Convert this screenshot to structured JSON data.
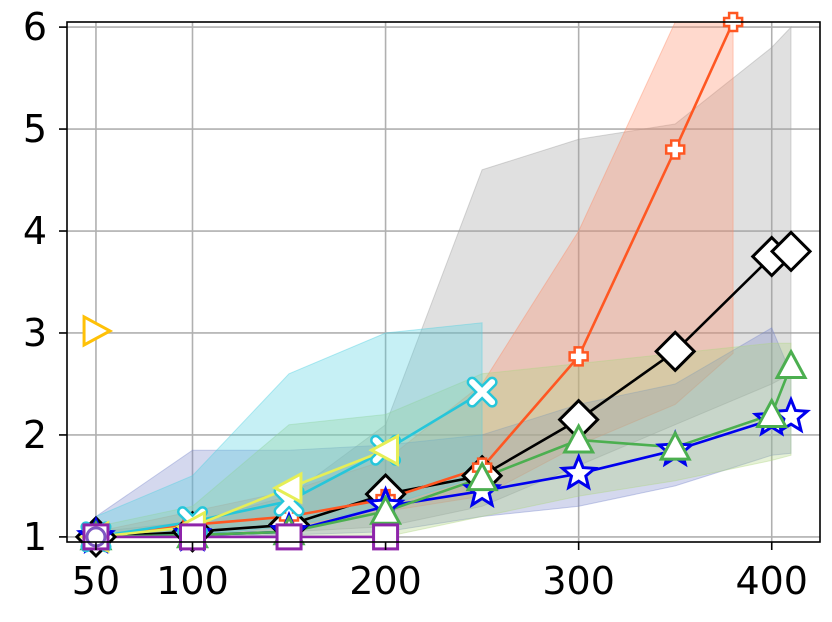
{
  "chart_data": {
    "type": "line",
    "title": "",
    "xlabel": "",
    "ylabel": "",
    "xlim": [
      35,
      425
    ],
    "ylim": [
      0.95,
      6.05
    ],
    "xticks": [
      50,
      100,
      200,
      300,
      400
    ],
    "xtick_labels": [
      "50",
      "100",
      "200",
      "300",
      "400"
    ],
    "yticks": [
      1,
      2,
      3,
      4,
      5,
      6
    ],
    "ytick_labels": [
      "1",
      "2",
      "3",
      "4",
      "5",
      "6"
    ],
    "grid": true,
    "series": [
      {
        "color": "#000000",
        "marker": "diamond",
        "filled": false,
        "points": [
          [
            50,
            1.0
          ],
          [
            100,
            1.05
          ],
          [
            150,
            1.12
          ],
          [
            200,
            1.42
          ],
          [
            250,
            1.6
          ],
          [
            300,
            2.15
          ],
          [
            350,
            2.82
          ],
          [
            400,
            3.75
          ],
          [
            410,
            3.8
          ]
        ],
        "band_color": "#9e9e9e",
        "band": {
          "x": [
            50,
            100,
            150,
            200,
            250,
            300,
            350,
            400,
            410
          ],
          "low": [
            1.0,
            1.02,
            1.05,
            1.1,
            1.3,
            1.7,
            2.1,
            2.5,
            2.6
          ],
          "high": [
            1.05,
            1.15,
            1.4,
            2.1,
            4.6,
            4.9,
            5.05,
            5.8,
            6.0
          ]
        }
      },
      {
        "color": "#ff5722",
        "marker": "plus",
        "filled": true,
        "points": [
          [
            50,
            1.0
          ],
          [
            100,
            1.12
          ],
          [
            150,
            1.2
          ],
          [
            200,
            1.37
          ],
          [
            250,
            1.68
          ],
          [
            300,
            2.77
          ],
          [
            350,
            4.8
          ],
          [
            380,
            6.05
          ]
        ],
        "band_color": "#ff8a65",
        "band": {
          "x": [
            50,
            100,
            150,
            200,
            250,
            300,
            350,
            380
          ],
          "low": [
            1.0,
            1.05,
            1.1,
            1.25,
            1.4,
            1.9,
            2.3,
            2.8
          ],
          "high": [
            1.05,
            1.25,
            1.45,
            1.75,
            2.5,
            4.0,
            6.05,
            6.05
          ]
        }
      },
      {
        "color": "#0000ee",
        "marker": "star",
        "filled": false,
        "points": [
          [
            50,
            1.0
          ],
          [
            100,
            1.02
          ],
          [
            150,
            1.05
          ],
          [
            200,
            1.3
          ],
          [
            250,
            1.45
          ],
          [
            300,
            1.62
          ],
          [
            350,
            1.85
          ],
          [
            400,
            2.15
          ],
          [
            410,
            2.18
          ]
        ],
        "band_color": "#7986cb",
        "band": {
          "x": [
            50,
            100,
            150,
            200,
            250,
            300,
            350,
            400,
            410
          ],
          "low": [
            1.0,
            1.0,
            1.02,
            1.05,
            1.2,
            1.3,
            1.5,
            1.8,
            1.82
          ],
          "high": [
            1.2,
            1.85,
            1.85,
            1.9,
            2.0,
            2.3,
            2.5,
            3.05,
            2.6
          ]
        }
      },
      {
        "color": "#4caf50",
        "marker": "triangle-up",
        "filled": false,
        "points": [
          [
            50,
            1.0
          ],
          [
            100,
            1.02
          ],
          [
            150,
            1.05
          ],
          [
            200,
            1.25
          ],
          [
            250,
            1.58
          ],
          [
            300,
            1.95
          ],
          [
            350,
            1.88
          ],
          [
            400,
            2.2
          ],
          [
            410,
            2.68
          ]
        ],
        "band_color": "#aed581",
        "band": {
          "x": [
            50,
            100,
            150,
            200,
            250,
            300,
            350,
            400,
            410
          ],
          "low": [
            1.0,
            1.0,
            1.0,
            1.0,
            1.2,
            1.4,
            1.55,
            1.75,
            1.8
          ],
          "high": [
            1.1,
            1.3,
            2.1,
            2.2,
            2.6,
            2.7,
            2.8,
            2.9,
            2.9
          ]
        }
      },
      {
        "color": "#26c6da",
        "marker": "x",
        "filled": true,
        "points": [
          [
            50,
            1.0
          ],
          [
            100,
            1.15
          ],
          [
            150,
            1.35
          ],
          [
            200,
            1.85
          ],
          [
            250,
            2.42
          ]
        ],
        "band_color": "#4dd0e1",
        "band": {
          "x": [
            50,
            100,
            150,
            200,
            250
          ],
          "low": [
            1.0,
            1.02,
            1.1,
            1.3,
            1.6
          ],
          "high": [
            1.2,
            1.6,
            2.6,
            3.0,
            3.1
          ]
        }
      },
      {
        "color": "#e6ee56",
        "marker": "triangle-left",
        "filled": false,
        "points": [
          [
            50,
            1.0
          ],
          [
            100,
            1.1
          ],
          [
            150,
            1.48
          ],
          [
            200,
            1.85
          ]
        ],
        "band_color": null,
        "band": null
      },
      {
        "color": "#8e24aa",
        "marker": "square",
        "filled": false,
        "points": [
          [
            50,
            1.0
          ],
          [
            100,
            1.0
          ],
          [
            150,
            1.0
          ],
          [
            200,
            1.0
          ]
        ],
        "band_color": null,
        "band": null
      },
      {
        "color": "#ffc107",
        "marker": "triangle-right",
        "filled": false,
        "points": [
          [
            50,
            3.02
          ]
        ],
        "band_color": null,
        "band": null
      },
      {
        "color": "#7e57c2",
        "marker": "circle",
        "filled": false,
        "points": [
          [
            50,
            1.0
          ]
        ],
        "band_color": null,
        "band": null
      }
    ]
  }
}
